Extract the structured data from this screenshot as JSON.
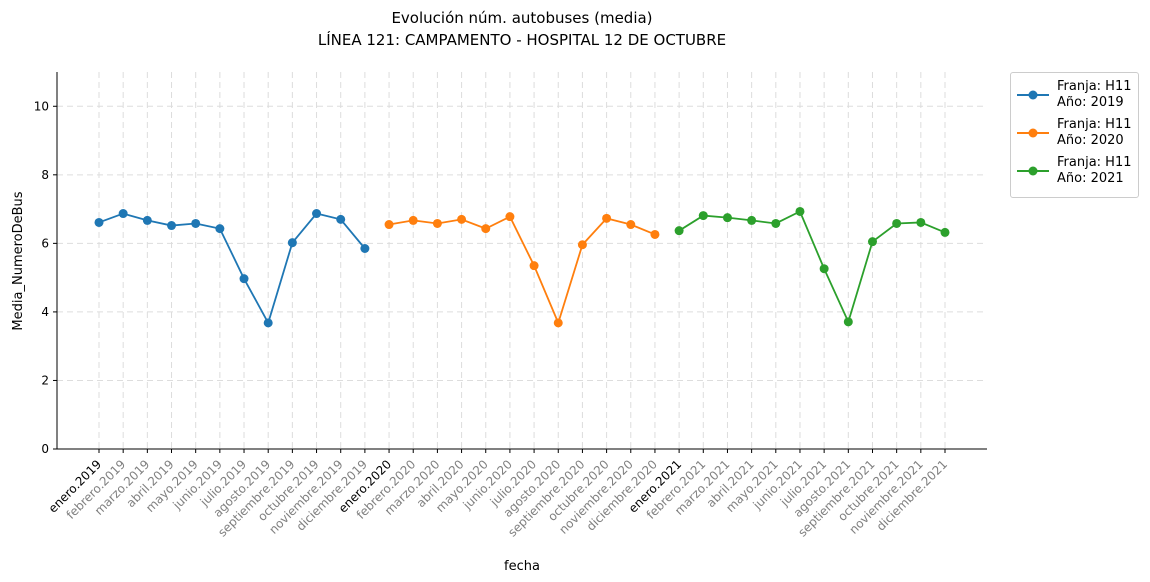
{
  "chart_data": {
    "type": "line",
    "title": "Evolución núm. autobuses (media)",
    "subtitle": "LÍNEA 121: CAMPAMENTO - HOSPITAL 12 DE OCTUBRE",
    "x_label": "fecha",
    "y_label": "Media_NumeroDeBus",
    "categories": [
      "enero.2019",
      "febrero.2019",
      "marzo.2019",
      "abril.2019",
      "mayo.2019",
      "junio.2019",
      "julio.2019",
      "agosto.2019",
      "septiembre.2019",
      "octubre.2019",
      "noviembre.2019",
      "diciembre.2019",
      "enero.2020",
      "febrero.2020",
      "marzo.2020",
      "abril.2020",
      "mayo.2020",
      "junio.2020",
      "julio.2020",
      "agosto.2020",
      "septiembre.2020",
      "octubre.2020",
      "noviembre.2020",
      "diciembre.2020",
      "enero.2021",
      "febrero.2021",
      "marzo.2021",
      "abril.2021",
      "mayo.2021",
      "junio.2021",
      "julio.2021",
      "agosto.2021",
      "septiembre.2021",
      "octubre.2021",
      "noviembre.2021",
      "diciembre.2021"
    ],
    "xtick_label_colors": [
      "#000000",
      "#808080",
      "#808080",
      "#808080",
      "#808080",
      "#808080",
      "#808080",
      "#808080",
      "#808080",
      "#808080",
      "#808080",
      "#808080",
      "#000000",
      "#808080",
      "#808080",
      "#808080",
      "#808080",
      "#808080",
      "#808080",
      "#808080",
      "#808080",
      "#808080",
      "#808080",
      "#808080",
      "#000000",
      "#808080",
      "#808080",
      "#808080",
      "#808080",
      "#808080",
      "#808080",
      "#808080",
      "#808080",
      "#808080",
      "#808080",
      "#808080"
    ],
    "series": [
      {
        "name": "Franja: H11\nAño: 2019",
        "color": "#1f77b4",
        "values": [
          6.61,
          6.87,
          6.67,
          6.52,
          6.58,
          6.43,
          4.97,
          3.68,
          6.02,
          6.87,
          6.7,
          5.85,
          null,
          null,
          null,
          null,
          null,
          null,
          null,
          null,
          null,
          null,
          null,
          null,
          null,
          null,
          null,
          null,
          null,
          null,
          null,
          null,
          null,
          null,
          null,
          null
        ]
      },
      {
        "name": "Franja: H11\nAño: 2020",
        "color": "#ff7f0e",
        "values": [
          null,
          null,
          null,
          null,
          null,
          null,
          null,
          null,
          null,
          null,
          null,
          null,
          6.55,
          6.67,
          6.58,
          6.7,
          6.43,
          6.78,
          5.35,
          3.68,
          5.96,
          6.73,
          6.55,
          6.26,
          null,
          null,
          null,
          null,
          null,
          null,
          null,
          null,
          null,
          null,
          null,
          null
        ]
      },
      {
        "name": "Franja: H11\nAño: 2021",
        "color": "#2ca02c",
        "values": [
          null,
          null,
          null,
          null,
          null,
          null,
          null,
          null,
          null,
          null,
          null,
          null,
          null,
          null,
          null,
          null,
          null,
          null,
          null,
          null,
          null,
          null,
          null,
          null,
          6.37,
          6.81,
          6.75,
          6.67,
          6.58,
          6.93,
          5.26,
          3.71,
          6.05,
          6.58,
          6.61,
          6.32
        ]
      }
    ],
    "ylim": [
      0,
      11
    ],
    "yticks": [
      0,
      2,
      4,
      6,
      8,
      10
    ],
    "grid": true,
    "legend": "outside-upper-right"
  }
}
